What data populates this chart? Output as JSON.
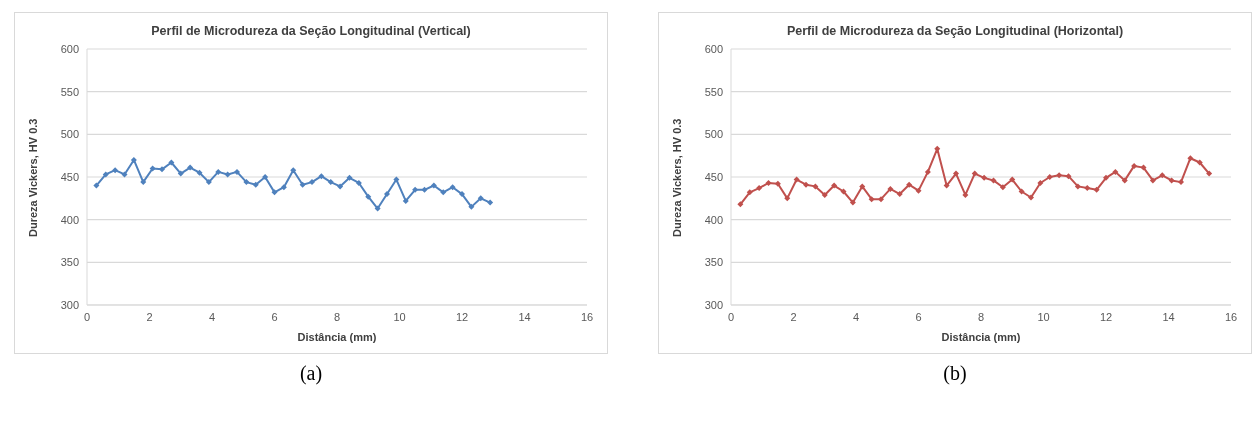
{
  "chart_data": [
    {
      "type": "line",
      "title": "Perfil de Microdureza da Seção Longitudinal (Vertical)",
      "xlabel": "Distância (mm)",
      "ylabel": "Dureza Vickers, HV 0.3",
      "xlim": [
        0,
        16
      ],
      "xticks": [
        0,
        2,
        4,
        6,
        8,
        10,
        12,
        14,
        16
      ],
      "ylim": [
        300,
        600
      ],
      "yticks": [
        300,
        350,
        400,
        450,
        500,
        550,
        600
      ],
      "grid": "y",
      "marker": "diamond",
      "line_style": "solid",
      "annotations": [
        "(a)"
      ],
      "series": [
        {
          "color": "#4f81bd",
          "x": [
            0.3,
            0.6,
            0.9,
            1.2,
            1.5,
            1.8,
            2.1,
            2.4,
            2.7,
            3.0,
            3.3,
            3.6,
            3.9,
            4.2,
            4.5,
            4.8,
            5.1,
            5.4,
            5.7,
            6.0,
            6.3,
            6.6,
            6.9,
            7.2,
            7.5,
            7.8,
            8.1,
            8.4,
            8.7,
            9.0,
            9.3,
            9.6,
            9.9,
            10.2,
            10.5,
            10.8,
            11.1,
            11.4,
            11.7,
            12.0,
            12.3,
            12.6,
            12.9
          ],
          "values": [
            440,
            453,
            458,
            453,
            470,
            444,
            460,
            459,
            467,
            454,
            461,
            455,
            444,
            456,
            453,
            456,
            444,
            441,
            450,
            432,
            438,
            458,
            441,
            444,
            451,
            444,
            439,
            449,
            443,
            427,
            413,
            430,
            447,
            422,
            435,
            435,
            440,
            432,
            438,
            430,
            415,
            425,
            420
          ]
        }
      ]
    },
    {
      "type": "line",
      "title": "Perfil de Microdureza da Seção Longitudinal (Horizontal)",
      "xlabel": "Distância (mm)",
      "ylabel": "Dureza Vickers, HV 0.3",
      "xlim": [
        0,
        16
      ],
      "xticks": [
        0,
        2,
        4,
        6,
        8,
        10,
        12,
        14,
        16
      ],
      "ylim": [
        300,
        600
      ],
      "yticks": [
        300,
        350,
        400,
        450,
        500,
        550,
        600
      ],
      "grid": "y",
      "marker": "diamond",
      "line_style": "solid",
      "annotations": [
        "(b)"
      ],
      "series": [
        {
          "color": "#c0504d",
          "x": [
            0.3,
            0.6,
            0.9,
            1.2,
            1.5,
            1.8,
            2.1,
            2.4,
            2.7,
            3.0,
            3.3,
            3.6,
            3.9,
            4.2,
            4.5,
            4.8,
            5.1,
            5.4,
            5.7,
            6.0,
            6.3,
            6.6,
            6.9,
            7.2,
            7.5,
            7.8,
            8.1,
            8.4,
            8.7,
            9.0,
            9.3,
            9.6,
            9.9,
            10.2,
            10.5,
            10.8,
            11.1,
            11.4,
            11.7,
            12.0,
            12.3,
            12.6,
            12.9,
            13.2,
            13.5,
            13.8,
            14.1,
            14.4,
            14.7,
            15.0,
            15.3
          ],
          "values": [
            418,
            432,
            437,
            443,
            442,
            425,
            447,
            441,
            439,
            429,
            440,
            433,
            420,
            439,
            424,
            424,
            436,
            430,
            441,
            434,
            456,
            483,
            440,
            454,
            429,
            454,
            449,
            446,
            438,
            447,
            433,
            426,
            443,
            450,
            452,
            451,
            439,
            437,
            435,
            449,
            456,
            446,
            463,
            461,
            446,
            452,
            446,
            444,
            472,
            467,
            454
          ]
        }
      ]
    }
  ]
}
